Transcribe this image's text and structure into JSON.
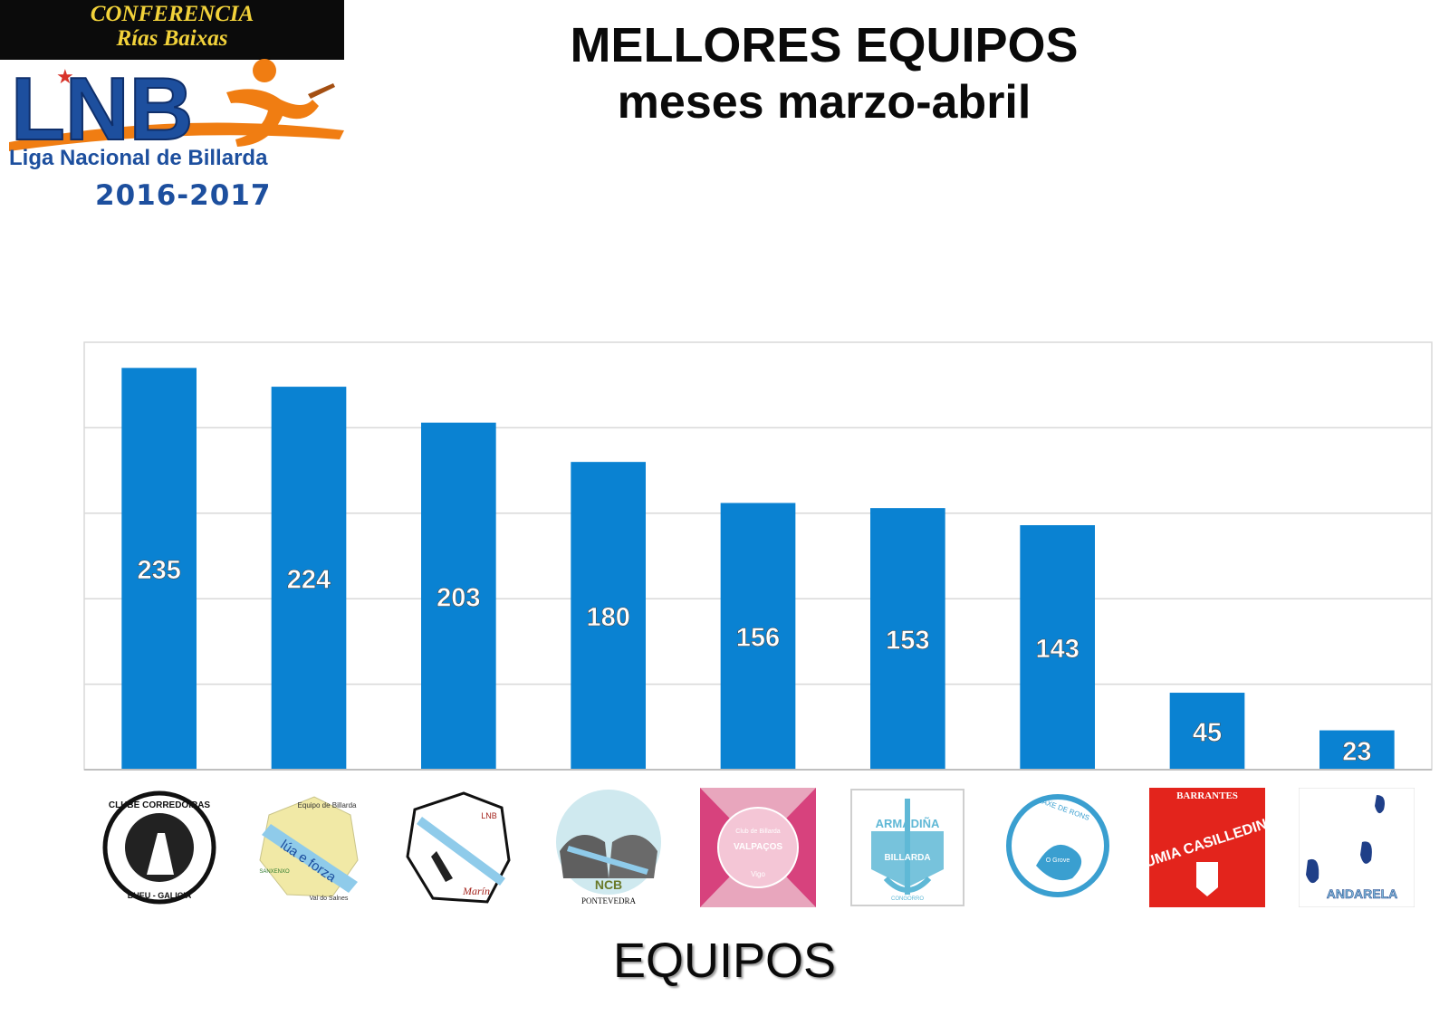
{
  "header": {
    "conference_line1": "CONFERENCIA",
    "conference_line2": "Rías Baixas",
    "logo_text": "LNB",
    "league_name": "Liga Nacional de Billarda",
    "season": "2016-2017"
  },
  "chart_data": {
    "type": "bar",
    "title": "MELLORES EQUIPOS",
    "subtitle": "meses marzo-abril",
    "xlabel": "EQUIPOS",
    "ylabel": "",
    "ylim": [
      0,
      250
    ],
    "grid": true,
    "gridline_count": 5,
    "bar_color": "#0a82d2",
    "values": [
      235,
      224,
      203,
      180,
      156,
      153,
      143,
      45,
      23
    ]
  },
  "team_logos": [
    {
      "icon": "clube-corredoiras-logo",
      "text_top": "CLUBE CORREDOIRAS",
      "text_bottom": "BUEU - GALICIA"
    },
    {
      "icon": "lua-e-forza-logo",
      "text_top": "Equipo de Billarda",
      "text_main": "lúa e forza",
      "text_bottom": "Val do Salnes",
      "text_small": "SANXENXO"
    },
    {
      "icon": "marin-team-logo",
      "text_main": "Marín",
      "text_side": "LNB"
    },
    {
      "icon": "ncb-pontevedra-logo",
      "text_main": "NCB",
      "text_bottom": "PONTEVEDRA"
    },
    {
      "icon": "valpacos-logo",
      "text_top": "Club de Billarda",
      "text_main": "VALPAÇOS",
      "text_bottom": "Vigo"
    },
    {
      "icon": "armadina-logo",
      "text_main": "ARMADIÑA",
      "text_sub": "BILLARDA",
      "text_bottom": "CONGORRO"
    },
    {
      "icon": "laxe-de-rons-logo",
      "text_top": "LAXE DE RONS",
      "text_bottom": "O Grove"
    },
    {
      "icon": "umia-casilledin-logo",
      "text_top": "BARRANTES",
      "text_main": "UMIA CASILLEDIN"
    },
    {
      "icon": "andarela-logo",
      "text_main": "ANDARELA"
    }
  ],
  "colors": {
    "title": "#0a0a0a",
    "bar": "#0a82d2",
    "grid": "#d9d9d9",
    "gold": "#f2d23a",
    "lnb_blue": "#1d4f9e",
    "lnb_orange": "#f07d12"
  }
}
